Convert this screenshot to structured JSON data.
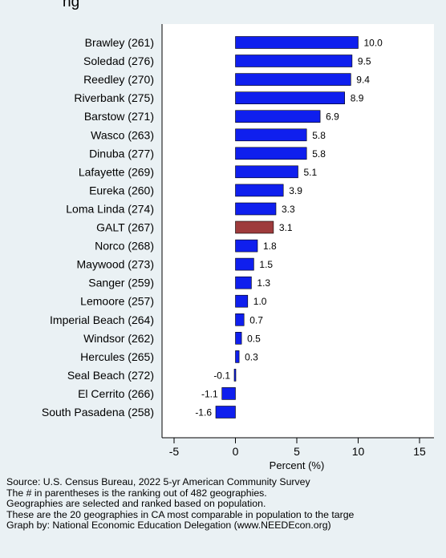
{
  "top_title": "ng",
  "chart_data": {
    "type": "bar",
    "orientation": "horizontal",
    "categories": [
      "Brawley (261)",
      "Soledad (276)",
      "Reedley (270)",
      "Riverbank (275)",
      "Barstow (271)",
      "Wasco (263)",
      "Dinuba (277)",
      "Lafayette (269)",
      "Eureka (260)",
      "Loma Linda (274)",
      "GALT (267)",
      "Norco (268)",
      "Maywood (273)",
      "Sanger (259)",
      "Lemoore (257)",
      "Imperial Beach (264)",
      "Windsor (262)",
      "Hercules (265)",
      "Seal Beach (272)",
      "El Cerrito (266)",
      "South Pasadena (258)"
    ],
    "values": [
      10.0,
      9.5,
      9.4,
      8.9,
      6.9,
      5.8,
      5.8,
      5.1,
      3.9,
      3.3,
      3.1,
      1.8,
      1.5,
      1.3,
      1.0,
      0.7,
      0.5,
      0.3,
      -0.1,
      -1.1,
      -1.6
    ],
    "value_labels": [
      "10.0",
      "9.5",
      "9.4",
      "8.9",
      "6.9",
      "5.8",
      "5.8",
      "5.1",
      "3.9",
      "3.3",
      "3.1",
      "1.8",
      "1.5",
      "1.3",
      "1.0",
      "0.7",
      "0.5",
      "0.3",
      "-0.1",
      "-1.1",
      "-1.6"
    ],
    "highlight_category": "GALT (267)",
    "xlim": [
      -6,
      16
    ],
    "xticks": [
      -5,
      0,
      5,
      10,
      15
    ],
    "xlabel": "Percent (%)",
    "ylabel": "",
    "grid": false,
    "colors": {
      "bar": "#0f1fee",
      "highlight": "#9e3b3c",
      "background": "#eaf1f4",
      "plot_area": "#ffffff"
    }
  },
  "notes": [
    "Source: U.S. Census Bureau, 2022 5-yr American Community Survey",
    "The # in parentheses is the ranking out of 482 geographies.",
    "Geographies are selected and ranked based on population.",
    "These are the 20 geographies in CA most comparable in population to the targe",
    "Graph by: National Economic Education Delegation (www.NEEDEcon.org)"
  ]
}
